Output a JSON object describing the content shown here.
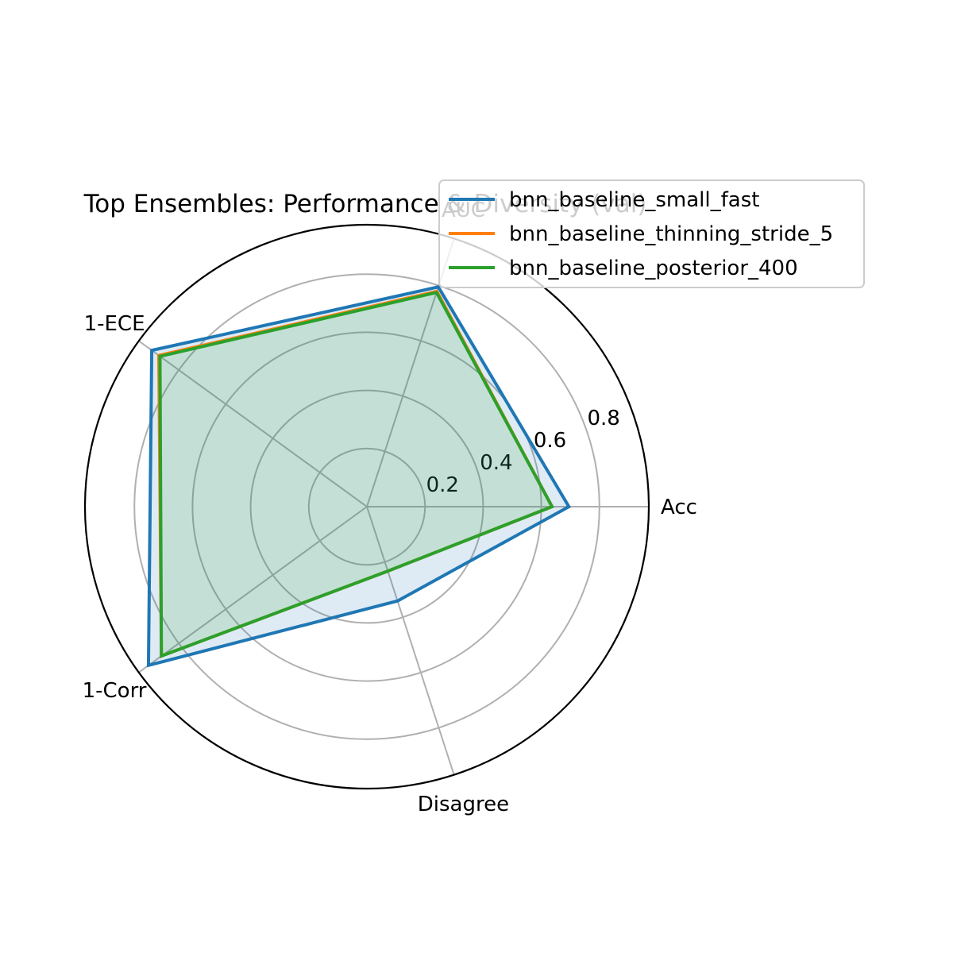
{
  "chart_data": {
    "type": "radar",
    "title": "Top Ensembles: Performance & Diversity (val)",
    "axes": [
      "Acc",
      "AUC",
      "1-ECE",
      "1-Corr",
      "Disagree"
    ],
    "radial_ticks": [
      "0.2",
      "0.4",
      "0.6",
      "0.8"
    ],
    "rlim": [
      0,
      0.97
    ],
    "grid": true,
    "legend_position": "upper-right",
    "series": [
      {
        "name": "bnn_baseline_small_fast",
        "color": "#1f77b4",
        "filled": true,
        "values": {
          "Acc": 0.695,
          "AUC": 0.795,
          "1-ECE": 0.915,
          "1-Corr": 0.929,
          "Disagree": 0.341
        }
      },
      {
        "name": "bnn_baseline_thinning_stride_5",
        "color": "#ff7f0e",
        "filled": false,
        "values": {
          "Acc": 0.637,
          "AUC": 0.779,
          "1-ECE": 0.885,
          "1-Corr": 0.874,
          "Disagree": 0.233
        }
      },
      {
        "name": "bnn_baseline_posterior_400",
        "color": "#2ca02c",
        "filled": true,
        "values": {
          "Acc": 0.637,
          "AUC": 0.775,
          "1-ECE": 0.88,
          "1-Corr": 0.874,
          "Disagree": 0.233
        }
      }
    ]
  }
}
